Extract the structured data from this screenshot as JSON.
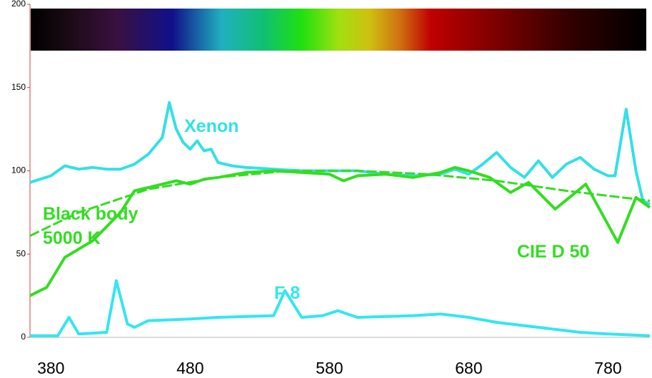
{
  "chart_data": {
    "type": "line",
    "xlim": [
      365,
      810
    ],
    "xticks": [
      380,
      480,
      580,
      680,
      780
    ],
    "ylim": [
      0,
      200
    ],
    "yticks": [
      0,
      50,
      100,
      150,
      200
    ],
    "series": [
      {
        "name": "Xenon",
        "color": "#33e0e6",
        "dashed": false,
        "x": [
          365,
          380,
          390,
          400,
          410,
          420,
          430,
          440,
          450,
          460,
          465,
          470,
          475,
          480,
          485,
          490,
          495,
          500,
          510,
          520,
          540,
          560,
          580,
          600,
          620,
          640,
          660,
          670,
          680,
          690,
          700,
          710,
          720,
          730,
          740,
          750,
          760,
          770,
          780,
          785,
          793,
          800,
          805,
          810
        ],
        "values": [
          93,
          97,
          103,
          101,
          102,
          101,
          101,
          104,
          110,
          120,
          141,
          125,
          117,
          113,
          118,
          112,
          113,
          105,
          103,
          102,
          101,
          100,
          100,
          100,
          98,
          97,
          98,
          101,
          98,
          104,
          111,
          102,
          96,
          106,
          96,
          104,
          108,
          101,
          97,
          97,
          137,
          100,
          82,
          80
        ]
      },
      {
        "name": "F 8",
        "color": "#33e6f0",
        "dashed": false,
        "x": [
          365,
          385,
          393,
          400,
          420,
          427,
          435,
          440,
          450,
          480,
          500,
          540,
          548,
          560,
          575,
          586,
          600,
          640,
          660,
          680,
          700,
          740,
          760,
          780,
          810
        ],
        "values": [
          1,
          1,
          12,
          2,
          3,
          34,
          8,
          6,
          10,
          11,
          12,
          13,
          28,
          12,
          13,
          16,
          12,
          13,
          14,
          12,
          9,
          5,
          3,
          2,
          1
        ]
      },
      {
        "name": "CIE D 50",
        "color": "#33dd22",
        "dashed": false,
        "x": [
          365,
          377,
          390,
          410,
          430,
          440,
          450,
          460,
          470,
          480,
          490,
          500,
          520,
          540,
          560,
          580,
          590,
          600,
          620,
          640,
          660,
          670,
          680,
          695,
          710,
          723,
          742,
          764,
          787,
          800,
          810
        ],
        "values": [
          25,
          30,
          48,
          58,
          75,
          88,
          90,
          92,
          94,
          92,
          95,
          96,
          99,
          100,
          99,
          98,
          94,
          97,
          98,
          96,
          99,
          102,
          100,
          96,
          87,
          93,
          77,
          92,
          57,
          84,
          78
        ]
      },
      {
        "name": "Black body 5000 K",
        "color": "#33dd22",
        "dashed": true,
        "x": [
          365,
          400,
          450,
          500,
          550,
          600,
          650,
          700,
          750,
          810
        ],
        "values": [
          61,
          75,
          89,
          96,
          100,
          100,
          98,
          94,
          88,
          82
        ]
      }
    ]
  }
}
